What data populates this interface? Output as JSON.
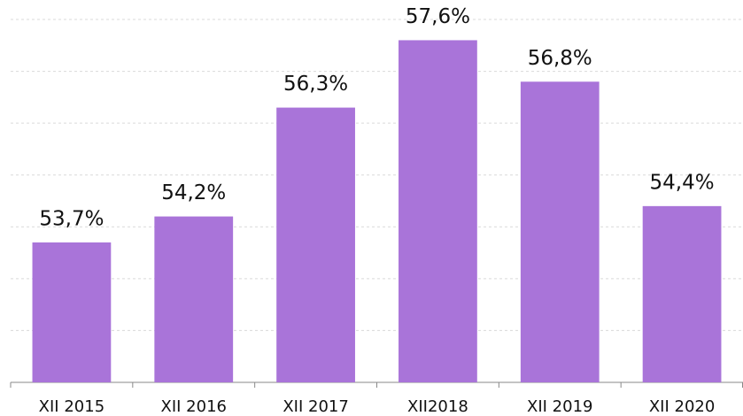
{
  "chart_data": {
    "type": "bar",
    "categories": [
      "XII 2015",
      "XII 2016",
      "XII 2017",
      "XII2018",
      "XII 2019",
      "XII 2020"
    ],
    "values": [
      53.7,
      54.2,
      56.3,
      57.6,
      56.8,
      54.4
    ],
    "value_labels": [
      "53,7%",
      "54,2%",
      "56,3%",
      "57,6%",
      "56,8%",
      "54,4%"
    ],
    "color": "#a974d9",
    "ylim": [
      51,
      58
    ],
    "yticks": [
      51,
      52,
      53,
      54,
      55,
      56,
      57,
      58
    ],
    "grid": true
  }
}
